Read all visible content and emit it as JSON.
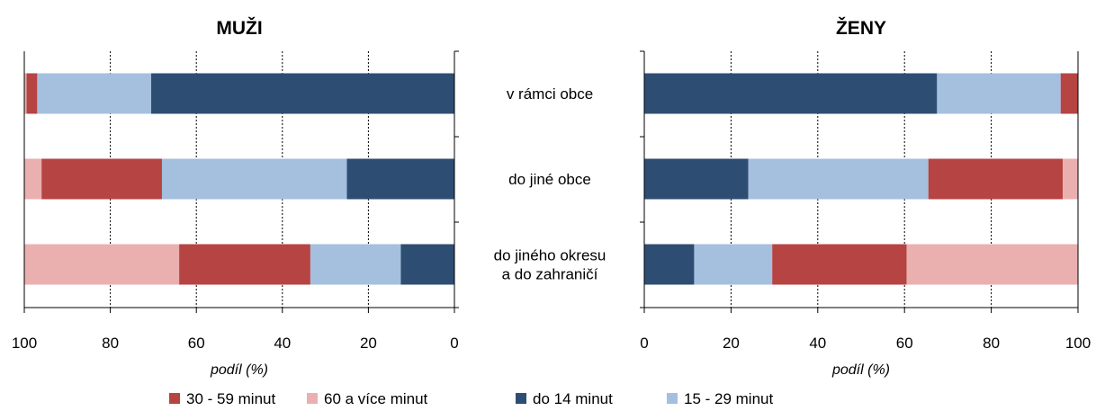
{
  "chart_data": [
    {
      "type": "bar",
      "orientation": "horizontal",
      "stacked": true,
      "title": "MUŽI",
      "xlabel": "podíl (%)",
      "xlim": [
        0,
        100
      ],
      "x_reversed": true,
      "xticks": [
        "0",
        "20",
        "40",
        "60",
        "80",
        "100"
      ],
      "grid": "vertical dotted",
      "categories": [
        "v rámci obce",
        "do jiné obce",
        "do jiného okresu a do zahraničí"
      ],
      "series": [
        {
          "name": "do 14 minut",
          "color": "#2e4d72",
          "values": [
            70.5,
            25.0,
            12.5
          ]
        },
        {
          "name": "15 - 29 minut",
          "color": "#a5bfdf",
          "values": [
            26.5,
            43.0,
            21.0
          ]
        },
        {
          "name": "30 - 59 minut",
          "color": "#b54443",
          "values": [
            2.5,
            28.0,
            30.5
          ]
        },
        {
          "name": "60 a více minut",
          "color": "#e9b0af",
          "values": [
            0.5,
            4.0,
            36.0
          ]
        }
      ]
    },
    {
      "type": "bar",
      "orientation": "horizontal",
      "stacked": true,
      "title": "ŽENY",
      "xlabel": "podíl (%)",
      "xlim": [
        0,
        100
      ],
      "x_reversed": false,
      "xticks": [
        "0",
        "20",
        "40",
        "60",
        "80",
        "100"
      ],
      "grid": "vertical dotted",
      "categories": [
        "v rámci obce",
        "do jiné obce",
        "do jiného okresu a do zahraničí"
      ],
      "series": [
        {
          "name": "do 14 minut",
          "color": "#2e4d72",
          "values": [
            67.5,
            24.0,
            11.5
          ]
        },
        {
          "name": "15 - 29 minut",
          "color": "#a5bfdf",
          "values": [
            28.5,
            41.5,
            18.0
          ]
        },
        {
          "name": "30 - 59 minut",
          "color": "#b54443",
          "values": [
            4.0,
            31.0,
            31.0
          ]
        },
        {
          "name": "60 a více minut",
          "color": "#e9b0af",
          "values": [
            0.0,
            3.5,
            39.5
          ]
        }
      ]
    }
  ],
  "category_labels": [
    {
      "lines": [
        "v rámci obce"
      ]
    },
    {
      "lines": [
        "do jiné obce"
      ]
    },
    {
      "lines": [
        "do jiného okresu",
        "a do zahraničí"
      ]
    }
  ],
  "legend": [
    {
      "label": "30 - 59 minut",
      "color": "#b54443"
    },
    {
      "label": "60 a více minut",
      "color": "#e9b0af"
    },
    {
      "label": "do 14 minut",
      "color": "#2e4d72"
    },
    {
      "label": "15 - 29 minut",
      "color": "#a5bfdf"
    }
  ]
}
